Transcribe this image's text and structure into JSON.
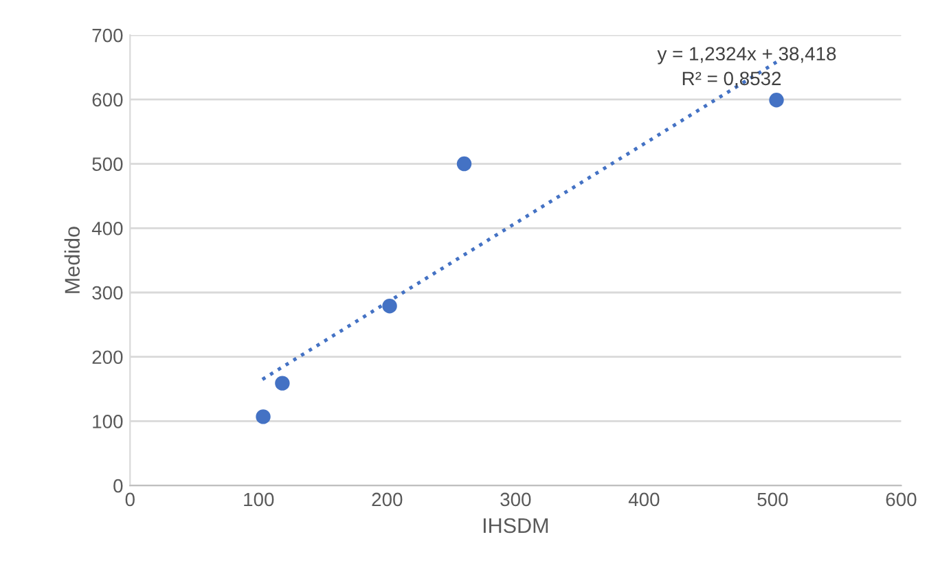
{
  "chart_data": {
    "type": "scatter",
    "xlabel": "IHSDM",
    "ylabel": "Medido",
    "x": [
      103.6,
      118.5,
      202,
      260,
      503
    ],
    "series": [
      {
        "color": "#4472c4",
        "values": [
          107,
          159,
          279,
          500,
          599
        ],
        "marker": "circle"
      },
      {
        "type": "line",
        "color": "#4472c4",
        "x": [
          103,
          503
        ],
        "values": [
          165,
          658
        ],
        "line_style": "dotted",
        "marker": "none"
      }
    ],
    "annotations": [
      "y = 1,2324x + 38,418",
      "R² = 0,8532"
    ],
    "xlim": [
      0,
      600
    ],
    "xticks": [
      0,
      100,
      200,
      300,
      400,
      500,
      600
    ],
    "ylim": [
      0,
      700
    ],
    "yticks": [
      0,
      100,
      200,
      300,
      400,
      500,
      600,
      700
    ],
    "grid": "y",
    "legend": false
  }
}
